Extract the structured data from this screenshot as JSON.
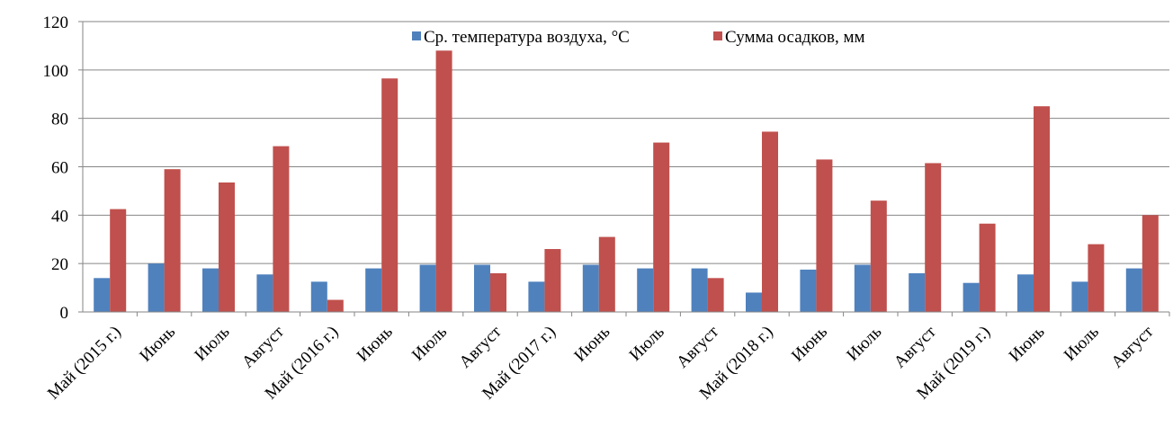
{
  "chart_data": {
    "type": "bar",
    "categories": [
      "Май (2015 г.)",
      "Июнь",
      "Июль",
      "Август",
      "Май (2016 г.)",
      "Июнь",
      "Июль",
      "Август",
      "Май (2017 г.)",
      "Июнь",
      "Июль",
      "Август",
      "Май (2018 г.)",
      "Июнь",
      "Июль",
      "Август",
      "Май (2019 г.)",
      "Июнь",
      "Июль",
      "Август"
    ],
    "series": [
      {
        "name": "Ср. температура воздуха, °С",
        "color": "#4f81bd",
        "values": [
          14,
          20,
          18,
          15.5,
          12.5,
          18,
          19.5,
          19.5,
          12.5,
          19.5,
          18,
          18,
          8,
          17.5,
          19.5,
          16,
          12,
          15.5,
          12.5,
          18
        ]
      },
      {
        "name": "Сумма осадков, мм",
        "color": "#c0504d",
        "values": [
          42.5,
          59,
          53.5,
          68.5,
          5,
          96.5,
          108,
          16,
          26,
          31,
          70,
          14,
          74.5,
          63,
          46,
          61.5,
          36.5,
          85,
          28,
          40
        ]
      }
    ],
    "ylim": [
      0,
      120
    ],
    "yticks": [
      0,
      20,
      40,
      60,
      80,
      100,
      120
    ],
    "grid": true,
    "legend": "top"
  }
}
